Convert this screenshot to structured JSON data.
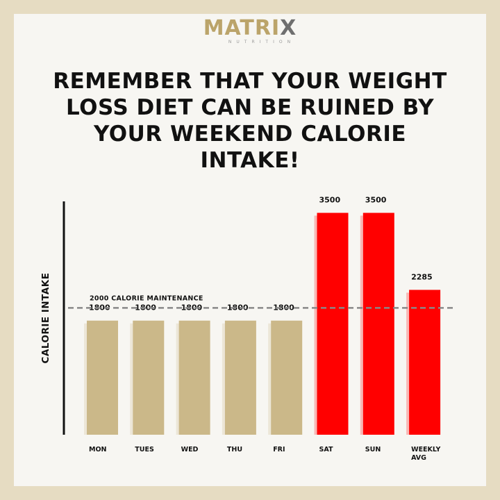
{
  "brand": {
    "name_start": "MATRI",
    "name_end": "X",
    "tagline": "NUTRITION"
  },
  "headline": "REMEMBER THAT YOUR WEIGHT LOSS DIET CAN BE RUINED BY YOUR WEEKEND CALORIE INTAKE!",
  "colors": {
    "weekday_bar": "#cbb889",
    "weekend_bar": "#ff0000",
    "reference_line": "#888888",
    "text": "#111111"
  },
  "chart_data": {
    "type": "bar",
    "title": "",
    "xlabel": "",
    "ylabel": "CALORIE INTAKE",
    "categories": [
      [
        "MON"
      ],
      [
        "TUES"
      ],
      [
        "WED"
      ],
      [
        "THU"
      ],
      [
        "FRI"
      ],
      [
        "SAT"
      ],
      [
        "SUN"
      ],
      [
        "WEEKLY",
        "AVG"
      ]
    ],
    "values": [
      1800,
      1800,
      1800,
      1800,
      1800,
      3500,
      3500,
      2285
    ],
    "value_labels": [
      "1800",
      "1800",
      "1800",
      "1800",
      "1800",
      "3500",
      "3500",
      "2285"
    ],
    "bar_colors": [
      "#cbb889",
      "#cbb889",
      "#cbb889",
      "#cbb889",
      "#cbb889",
      "#ff0000",
      "#ff0000",
      "#ff0000"
    ],
    "ylim": [
      0,
      3900
    ],
    "grid": false,
    "reference_line": {
      "value": 2000,
      "label": "2000 CALORIE MAINTENANCE",
      "style": "dashed"
    }
  }
}
